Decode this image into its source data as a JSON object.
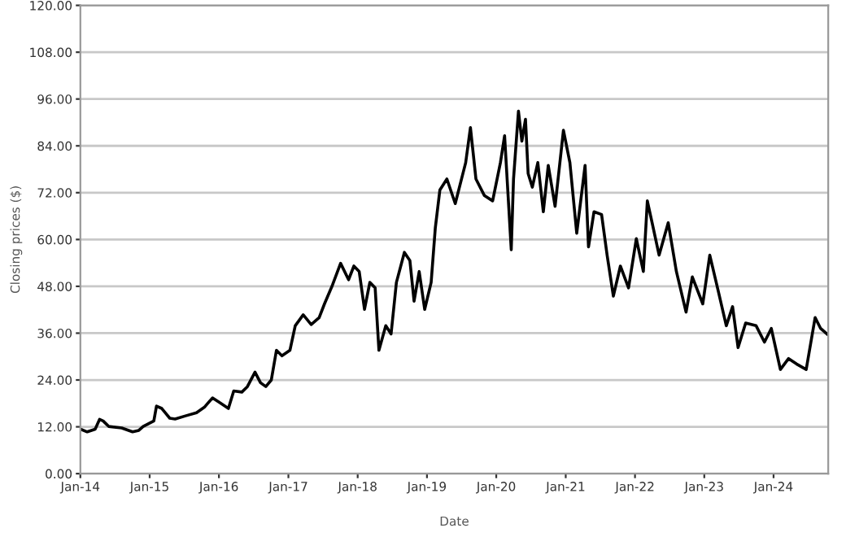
{
  "chart_data": {
    "type": "line",
    "xlabel": "Date",
    "ylabel": "Closing prices ($)",
    "grid": "y",
    "line_style": "solid",
    "color": "#000000",
    "x": [
      "2014-01-02",
      "2014-02-06",
      "2014-03-20",
      "2014-04-12",
      "2014-05-01",
      "2014-05-30",
      "2014-08-07",
      "2014-10-03",
      "2014-11-05",
      "2014-11-28",
      "2015-01-23",
      "2015-02-06",
      "2015-03-06",
      "2015-04-17",
      "2015-05-15",
      "2015-07-09",
      "2015-09-05",
      "2015-10-16",
      "2015-11-28",
      "2016-01-08",
      "2016-02-20",
      "2016-03-19",
      "2016-05-01",
      "2016-05-30",
      "2016-07-09",
      "2016-08-07",
      "2016-09-04",
      "2016-10-03",
      "2016-10-30",
      "2016-11-28",
      "2017-01-09",
      "2017-02-06",
      "2017-03-20",
      "2017-05-01",
      "2017-06-12",
      "2017-07-10",
      "2017-08-21",
      "2017-10-03",
      "2017-11-14",
      "2017-12-12",
      "2018-01-09",
      "2018-02-06",
      "2018-03-06",
      "2018-04-03",
      "2018-04-23",
      "2018-05-29",
      "2018-06-26",
      "2018-07-24",
      "2018-09-04",
      "2018-10-03",
      "2018-10-25",
      "2018-11-21",
      "2018-12-20",
      "2019-01-23",
      "2019-02-14",
      "2019-03-10",
      "2019-04-16",
      "2019-05-30",
      "2019-07-24",
      "2019-08-18",
      "2019-09-16",
      "2019-10-30",
      "2019-12-13",
      "2020-01-23",
      "2020-02-14",
      "2020-03-20",
      "2020-04-01",
      "2020-04-27",
      "2020-05-15",
      "2020-06-03",
      "2020-06-17",
      "2020-07-09",
      "2020-08-07",
      "2020-09-05",
      "2020-10-01",
      "2020-11-06",
      "2020-12-20",
      "2021-01-23",
      "2021-02-28",
      "2021-04-13",
      "2021-05-01",
      "2021-05-30",
      "2021-07-09",
      "2021-08-07",
      "2021-09-09",
      "2021-10-16",
      "2021-11-28",
      "2022-01-08",
      "2022-02-14",
      "2022-03-07",
      "2022-04-01",
      "2022-05-08",
      "2022-06-25",
      "2022-08-07",
      "2022-09-27",
      "2022-10-30",
      "2022-12-24",
      "2023-01-30",
      "2023-03-15",
      "2023-04-27",
      "2023-05-30",
      "2023-06-28",
      "2023-08-07",
      "2023-10-01",
      "2023-11-14",
      "2023-12-20",
      "2024-02-06",
      "2024-03-20",
      "2024-05-01",
      "2024-06-21",
      "2024-08-07",
      "2024-09-05",
      "2024-10-08"
    ],
    "values": [
      11.4,
      10.7,
      11.4,
      13.9,
      13.5,
      12.1,
      11.7,
      10.7,
      11.1,
      12.1,
      13.5,
      17.3,
      16.7,
      14.2,
      14.0,
      14.8,
      15.6,
      17.0,
      19.4,
      18.1,
      16.7,
      21.2,
      20.9,
      22.3,
      26.0,
      23.3,
      22.3,
      24.0,
      31.6,
      30.2,
      31.6,
      37.9,
      40.7,
      38.2,
      40.0,
      43.5,
      48.3,
      53.9,
      49.7,
      53.2,
      51.8,
      42.1,
      49.0,
      47.6,
      31.6,
      37.9,
      35.8,
      49.0,
      56.7,
      54.6,
      44.2,
      51.8,
      42.1,
      49.0,
      63.0,
      72.7,
      75.5,
      69.2,
      79.7,
      88.7,
      75.5,
      71.3,
      69.9,
      79.7,
      86.6,
      57.4,
      75.5,
      92.9,
      85.2,
      90.8,
      76.9,
      73.4,
      79.7,
      67.1,
      79.0,
      68.5,
      88.0,
      79.7,
      61.6,
      79.0,
      58.1,
      67.1,
      66.4,
      56.0,
      45.5,
      53.2,
      47.6,
      60.2,
      51.8,
      69.9,
      64.3,
      56.0,
      64.3,
      51.8,
      41.4,
      50.4,
      43.5,
      56.0,
      46.9,
      37.9,
      42.8,
      32.3,
      38.6,
      37.9,
      33.7,
      37.2,
      26.7,
      29.5,
      28.1,
      26.7,
      40.0,
      37.2,
      35.8
    ],
    "xlim": [
      "2014-01-01",
      "2024-10-15"
    ],
    "xticks": [
      {
        "value": "2014-01-01",
        "label": "Jan-14"
      },
      {
        "value": "2015-01-01",
        "label": "Jan-15"
      },
      {
        "value": "2016-01-01",
        "label": "Jan-16"
      },
      {
        "value": "2017-01-01",
        "label": "Jan-17"
      },
      {
        "value": "2018-01-01",
        "label": "Jan-18"
      },
      {
        "value": "2019-01-01",
        "label": "Jan-19"
      },
      {
        "value": "2020-01-01",
        "label": "Jan-20"
      },
      {
        "value": "2021-01-01",
        "label": "Jan-21"
      },
      {
        "value": "2022-01-01",
        "label": "Jan-22"
      },
      {
        "value": "2023-01-01",
        "label": "Jan-23"
      },
      {
        "value": "2024-01-01",
        "label": "Jan-24"
      }
    ],
    "ylim": [
      0,
      120
    ],
    "yticks": [
      {
        "value": 0,
        "label": "0.00"
      },
      {
        "value": 12,
        "label": "12.00"
      },
      {
        "value": 24,
        "label": "24.00"
      },
      {
        "value": 36,
        "label": "36.00"
      },
      {
        "value": 48,
        "label": "48.00"
      },
      {
        "value": 60,
        "label": "60.00"
      },
      {
        "value": 72,
        "label": "72.00"
      },
      {
        "value": 84,
        "label": "84.00"
      },
      {
        "value": 96,
        "label": "96.00"
      },
      {
        "value": 108,
        "label": "108.00"
      },
      {
        "value": 120,
        "label": "120.00"
      }
    ]
  }
}
